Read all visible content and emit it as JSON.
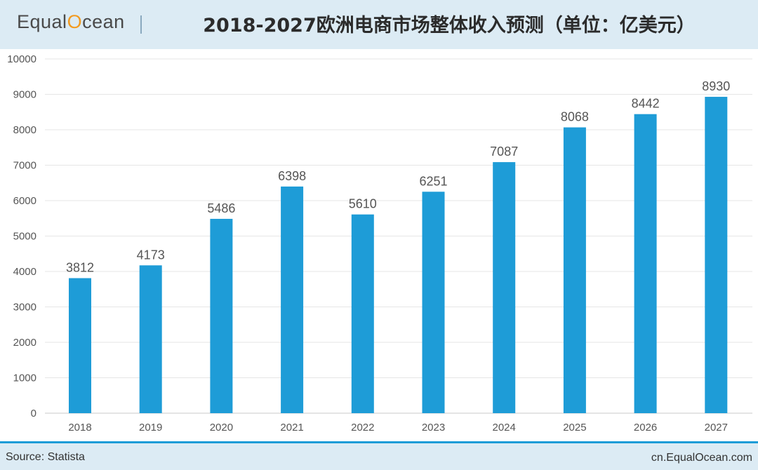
{
  "header": {
    "logo_left": "Equal",
    "logo_o": "O",
    "logo_right": "cean",
    "title": "2018-2027欧洲电商市场整体收入预测（单位：亿美元）"
  },
  "footer": {
    "source": "Source: Statista",
    "site": "cn.EqualOcean.com"
  },
  "colors": {
    "bar": "#1e9cd7",
    "header_bg": "#dcebf4",
    "accent": "#f39a1e"
  },
  "chart_data": {
    "type": "bar",
    "categories": [
      "2018",
      "2019",
      "2020",
      "2021",
      "2022",
      "2023",
      "2024",
      "2025",
      "2026",
      "2027"
    ],
    "values": [
      3812,
      4173,
      5486,
      6398,
      5610,
      6251,
      7087,
      8068,
      8442,
      8930
    ],
    "ylim": [
      0,
      10000
    ],
    "yticks": [
      0,
      1000,
      2000,
      3000,
      4000,
      5000,
      6000,
      7000,
      8000,
      9000,
      10000
    ],
    "grid": true,
    "data_labels": true
  }
}
